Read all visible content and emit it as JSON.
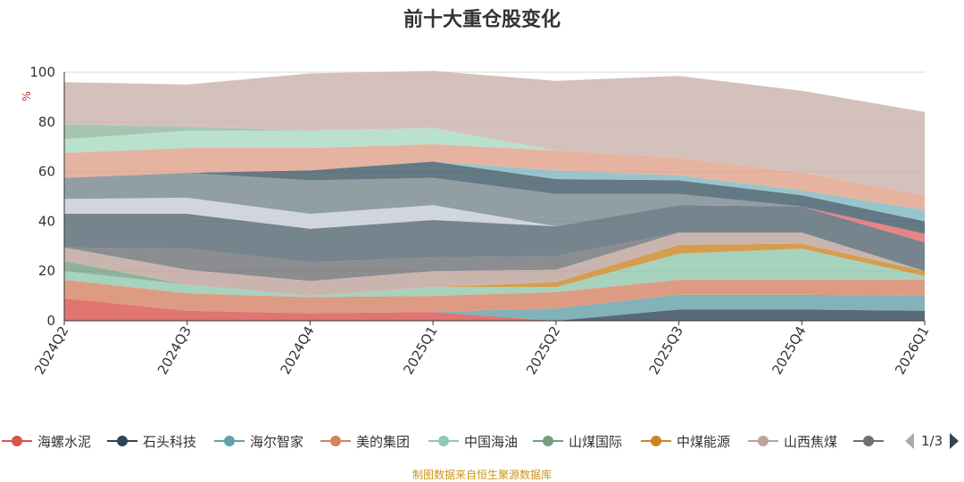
{
  "title": "前十大重仓股变化",
  "footer": "制图数据来自恒生聚源数据库",
  "legend_page": "1/3",
  "chart_data": {
    "type": "area",
    "stacked": true,
    "ylabel": "%",
    "ylim": [
      0,
      100
    ],
    "yticks": [
      0,
      20,
      40,
      60,
      80,
      100
    ],
    "categories": [
      "2024Q2",
      "2024Q3",
      "2024Q4",
      "2025Q1",
      "2025Q2",
      "2025Q3",
      "2025Q4",
      "2026Q1"
    ],
    "grid": true,
    "legend_position": "bottom",
    "series": [
      {
        "name": "海螺水泥",
        "color": "#d9534f",
        "values": [
          9,
          4,
          3,
          3.5,
          0,
          0,
          0,
          0
        ]
      },
      {
        "name": "石头科技",
        "color": "#2f4554",
        "values": [
          0,
          0,
          0,
          0,
          0,
          4.5,
          4.5,
          4
        ]
      },
      {
        "name": "海尔智家",
        "color": "#61a0a8",
        "values": [
          0,
          0,
          0,
          0,
          5,
          6,
          6,
          6
        ]
      },
      {
        "name": "美的集团",
        "color": "#d48265",
        "values": [
          7.5,
          7,
          6.5,
          6.5,
          6.5,
          6,
          6,
          6.5
        ]
      },
      {
        "name": "中国海油",
        "color": "#91c7ae",
        "values": [
          3.5,
          3.5,
          0.5,
          3.5,
          2,
          10.5,
          12.5,
          1.5
        ]
      },
      {
        "name": "山煤国际",
        "color": "#749f83",
        "values": [
          4,
          0,
          0,
          0,
          0,
          0,
          0,
          0
        ]
      },
      {
        "name": "中煤能源",
        "color": "#ca8622",
        "values": [
          0,
          0,
          0,
          0,
          2,
          3.5,
          2,
          2
        ]
      },
      {
        "name": "山西焦煤",
        "color": "#bda29a",
        "values": [
          5.5,
          6,
          6,
          6.5,
          5,
          5,
          4.5,
          0
        ]
      },
      {
        "values": [
          0,
          8.5,
          7.5,
          5.5,
          5.5,
          0,
          0,
          0
        ]
      },
      {
        "values": [
          13.5,
          14,
          13.5,
          15,
          12,
          11,
          10.5,
          11.5
        ]
      },
      {
        "values": [
          6,
          6.5,
          6,
          6,
          0,
          0,
          0,
          0
        ]
      },
      {
        "values": [
          8.5,
          10,
          13.5,
          11,
          13,
          4.5,
          0,
          0
        ]
      },
      {
        "values": [
          0,
          0,
          0,
          0,
          0,
          0,
          0,
          3.5
        ]
      },
      {
        "values": [
          0,
          0,
          4,
          6.5,
          6,
          5.5,
          4.5,
          5
        ]
      },
      {
        "values": [
          0,
          0,
          0,
          0,
          3.5,
          2,
          2,
          4.5
        ]
      },
      {
        "values": [
          10,
          10,
          9,
          7,
          8,
          7,
          7,
          6
        ]
      },
      {
        "values": [
          5.5,
          7,
          7,
          6.5,
          0,
          0,
          0,
          0
        ]
      },
      {
        "values": [
          6,
          1.5,
          0,
          0,
          0,
          0,
          0,
          0
        ]
      },
      {
        "values": [
          17,
          17,
          23,
          23,
          28,
          33,
          33,
          33.5
        ]
      }
    ],
    "legend_visible": [
      "海螺水泥",
      "石头科技",
      "海尔智家",
      "美的集团",
      "中国海油",
      "山煤国际",
      "中煤能源",
      "山西焦煤"
    ],
    "colors": [
      "#d9534f",
      "#2f4554",
      "#61a0a8",
      "#d48265",
      "#91c7ae",
      "#749f83",
      "#ca8622",
      "#bda29a",
      "#6e7074",
      "#546570",
      "#c4ccd3",
      "#75878f",
      "#e06666",
      "#3f5866",
      "#7eb6bf",
      "#e0a088",
      "#a9d8c2",
      "#8fb79c",
      "#c9b1aa"
    ]
  }
}
